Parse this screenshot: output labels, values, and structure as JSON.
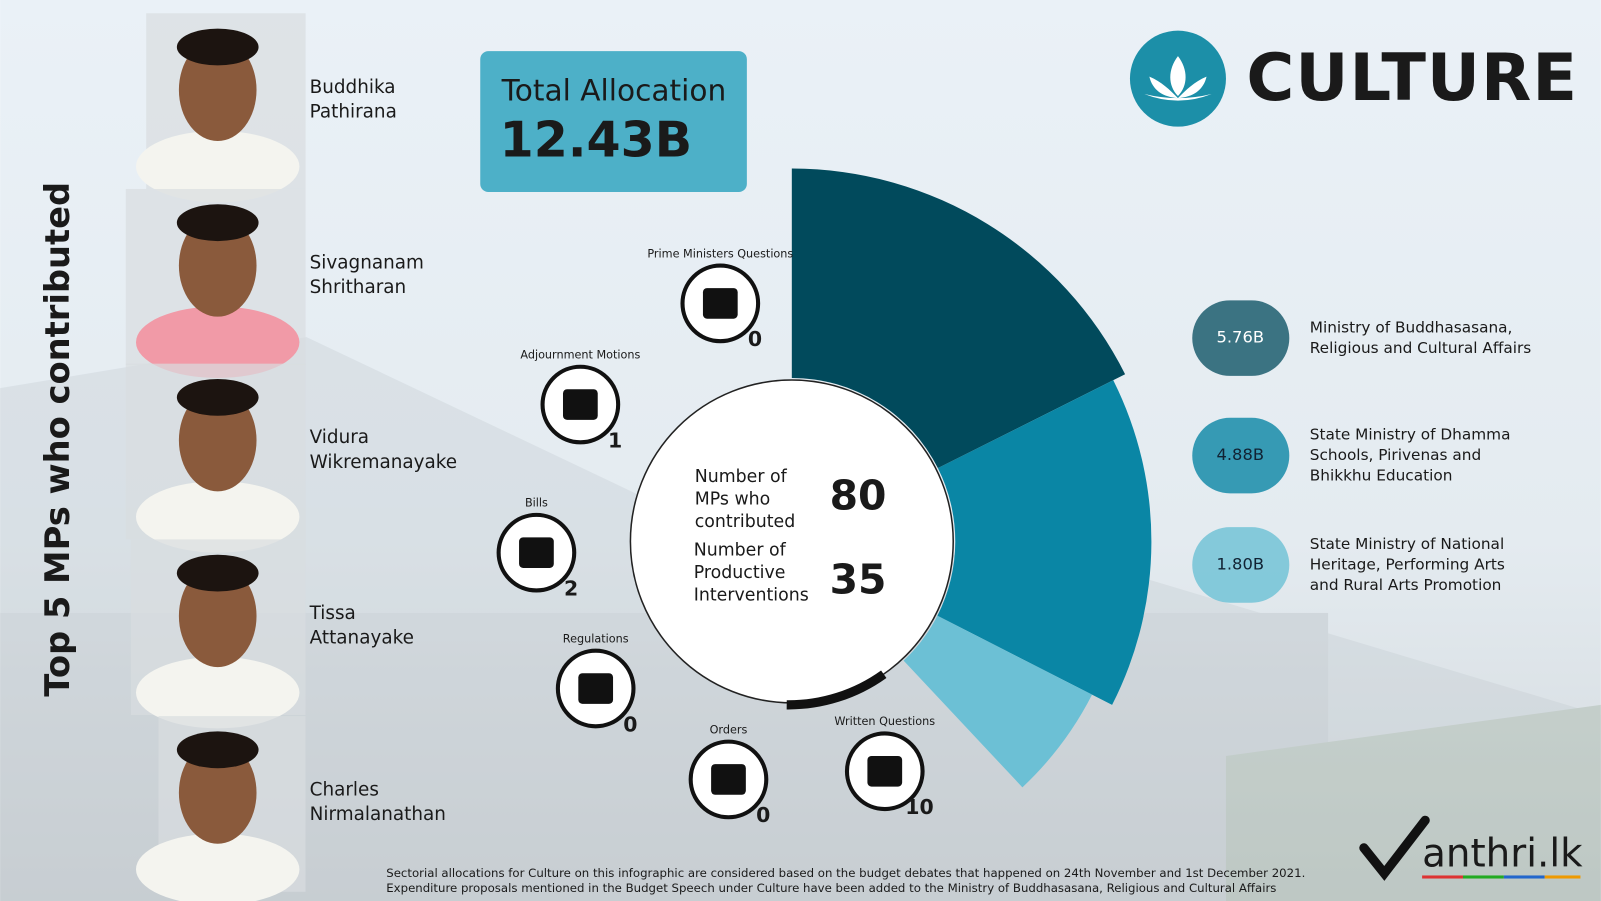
{
  "header": {
    "title": "CULTURE"
  },
  "total_allocation": {
    "label": "Total Allocation",
    "value": "12.43B"
  },
  "side_title": "Top 5 MPs who contributed",
  "mps": [
    {
      "name_lines": [
        "Buddhika",
        "Pathirana"
      ]
    },
    {
      "name_lines": [
        "Sivagnanam",
        "Shritharan"
      ]
    },
    {
      "name_lines": [
        "Vidura",
        "Wikremanayake"
      ]
    },
    {
      "name_lines": [
        "Tissa",
        "Attanayake"
      ]
    },
    {
      "name_lines": [
        "Charles",
        "Nirmalanathan"
      ]
    }
  ],
  "stats": [
    {
      "label_lines": [
        "Number of",
        "MPs who",
        "contributed"
      ],
      "value": "80"
    },
    {
      "label_lines": [
        "Number of",
        "Productive",
        "Interventions"
      ],
      "value": "35"
    }
  ],
  "interventions": [
    {
      "label": "Prime Ministers Questions",
      "count": "0"
    },
    {
      "label": "Adjournment Motions",
      "count": "1"
    },
    {
      "label": "Bills",
      "count": "2"
    },
    {
      "label": "Regulations",
      "count": "0"
    },
    {
      "label": "Orders",
      "count": "0"
    },
    {
      "label": "Written Questions",
      "count": "10"
    }
  ],
  "allocations": [
    {
      "value": 5.76,
      "value_label": "5.76B",
      "color": "#014a5c",
      "label_lines": [
        "Ministry of Buddhasasana,",
        "Religious and Cultural Affairs"
      ]
    },
    {
      "value": 4.88,
      "value_label": "4.88B",
      "color": "#0a86a5",
      "label_lines": [
        "State Ministry of Dhamma",
        "Schools, Pirivenas and",
        "Bhikkhu Education"
      ]
    },
    {
      "value": 1.8,
      "value_label": "1.80B",
      "color": "#6cc0d5",
      "label_lines": [
        "State Ministry of National",
        "Heritage, Performing Arts",
        "and Rural Arts Promotion"
      ]
    }
  ],
  "footnote_lines": [
    "Sectorial allocations for Culture on this infographic are considered based on the budget debates that happened on 24th November and 1st December 2021.",
    "Expenditure proposals mentioned in the Budget Speech under Culture have been added to the Ministry of Buddhasasana, Religious and Cultural Affairs"
  ],
  "logo": "anthri.lk"
}
